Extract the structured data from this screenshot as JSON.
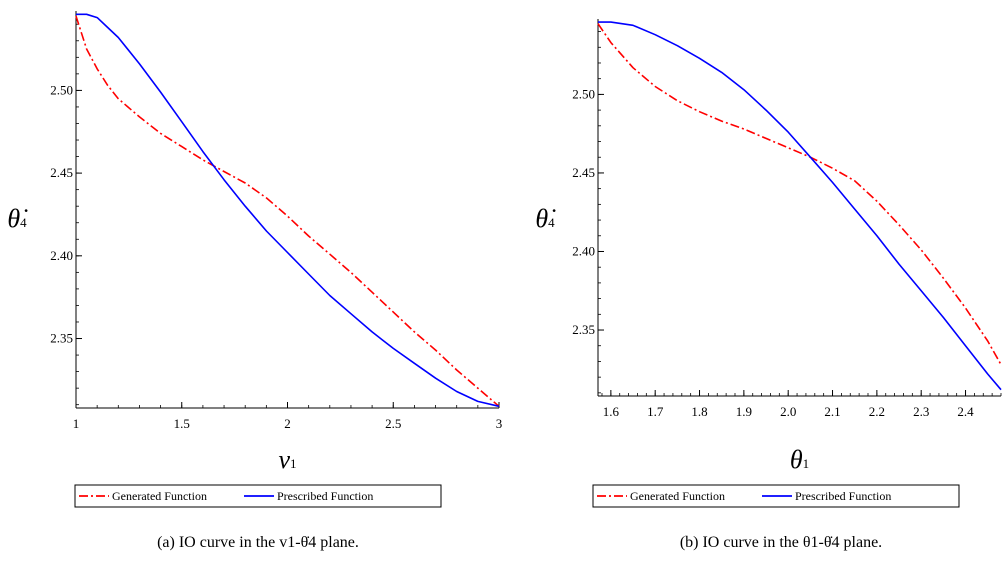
{
  "chart_data": [
    {
      "type": "line",
      "xlim": [
        1,
        3
      ],
      "ylim": [
        2.308,
        2.548
      ],
      "xticks": [
        "1",
        "1.5",
        "2",
        "2.5",
        "3"
      ],
      "yticks": [
        "2.35",
        "2.40",
        "2.45",
        "2.50"
      ],
      "xlabel": {
        "main": "v",
        "sub": "1"
      },
      "ylabel": {
        "main": "θ̇",
        "sub": "4"
      },
      "legend": {
        "position": "bottom"
      },
      "caption": "(a) IO curve in the v1-θ̇4 plane.",
      "series": [
        {
          "name": "Generated Function",
          "color": "#ff0000",
          "style": "dash-dot",
          "x": [
            1.0,
            1.05,
            1.1,
            1.15,
            1.2,
            1.3,
            1.4,
            1.5,
            1.6,
            1.7,
            1.8,
            1.9,
            2.0,
            2.1,
            2.2,
            2.3,
            2.4,
            2.5,
            2.6,
            2.7,
            2.8,
            2.9,
            3.0
          ],
          "y": [
            2.545,
            2.525,
            2.513,
            2.503,
            2.495,
            2.484,
            2.474,
            2.466,
            2.458,
            2.451,
            2.444,
            2.435,
            2.424,
            2.412,
            2.401,
            2.39,
            2.378,
            2.366,
            2.354,
            2.343,
            2.331,
            2.32,
            2.309
          ]
        },
        {
          "name": "Prescribed Function",
          "color": "#0000ff",
          "style": "solid",
          "x": [
            1.0,
            1.05,
            1.1,
            1.15,
            1.2,
            1.3,
            1.4,
            1.5,
            1.6,
            1.7,
            1.8,
            1.9,
            2.0,
            2.1,
            2.2,
            2.3,
            2.4,
            2.5,
            2.6,
            2.7,
            2.8,
            2.9,
            3.0
          ],
          "y": [
            2.546,
            2.546,
            2.544,
            2.538,
            2.532,
            2.516,
            2.499,
            2.481,
            2.463,
            2.446,
            2.43,
            2.415,
            2.402,
            2.389,
            2.376,
            2.365,
            2.354,
            2.344,
            2.335,
            2.326,
            2.318,
            2.312,
            2.309
          ]
        }
      ]
    },
    {
      "type": "line",
      "xlim": [
        1.571,
        2.48
      ],
      "ylim": [
        2.308,
        2.548
      ],
      "xticks": [
        "1.6",
        "1.7",
        "1.8",
        "1.9",
        "2.0",
        "2.1",
        "2.2",
        "2.3",
        "2.4"
      ],
      "yticks": [
        "2.35",
        "2.40",
        "2.45",
        "2.50"
      ],
      "xlabel": {
        "main": "θ",
        "sub": "1"
      },
      "ylabel": {
        "main": "θ̇",
        "sub": "4"
      },
      "legend": {
        "position": "bottom"
      },
      "caption": "(b) IO curve in the θ1-θ̇4 plane.",
      "series": [
        {
          "name": "Generated Function",
          "color": "#ff0000",
          "style": "dash-dot",
          "x": [
            1.571,
            1.6,
            1.65,
            1.7,
            1.75,
            1.8,
            1.85,
            1.9,
            1.95,
            2.0,
            2.05,
            2.1,
            2.15,
            2.2,
            2.25,
            2.3,
            2.35,
            2.4,
            2.45,
            2.48
          ],
          "y": [
            2.545,
            2.533,
            2.517,
            2.505,
            2.496,
            2.489,
            2.483,
            2.478,
            2.472,
            2.466,
            2.46,
            2.453,
            2.445,
            2.432,
            2.417,
            2.401,
            2.383,
            2.364,
            2.343,
            2.328
          ]
        },
        {
          "name": "Prescribed Function",
          "color": "#0000ff",
          "style": "solid",
          "x": [
            1.571,
            1.6,
            1.65,
            1.7,
            1.75,
            1.8,
            1.85,
            1.9,
            1.95,
            2.0,
            2.05,
            2.1,
            2.15,
            2.2,
            2.25,
            2.3,
            2.35,
            2.4,
            2.45,
            2.48
          ],
          "y": [
            2.546,
            2.546,
            2.544,
            2.538,
            2.531,
            2.523,
            2.514,
            2.503,
            2.49,
            2.476,
            2.46,
            2.444,
            2.427,
            2.41,
            2.392,
            2.375,
            2.358,
            2.34,
            2.322,
            2.312
          ]
        }
      ]
    }
  ]
}
